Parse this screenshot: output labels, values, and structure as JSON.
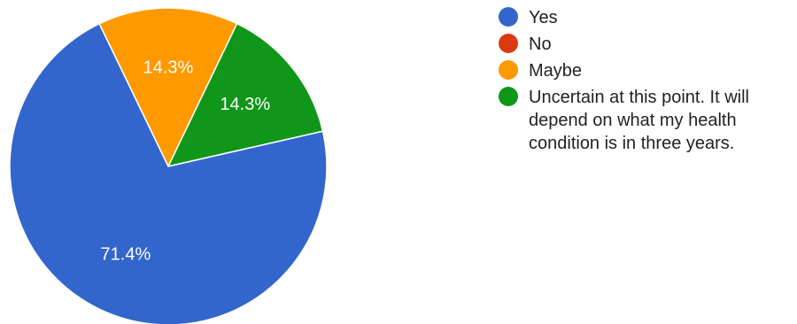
{
  "chart_data": {
    "type": "pie",
    "title": "",
    "categories": [
      "Yes",
      "No",
      "Maybe",
      "Uncertain at this point. It will depend on what my health condition is in three years."
    ],
    "values": [
      71.4,
      0,
      14.3,
      14.3
    ],
    "slice_labels": [
      "71.4%",
      "",
      "14.3%",
      "14.3%"
    ],
    "colors": [
      "#3366cc",
      "#dc3912",
      "#ff9900",
      "#109618"
    ],
    "legend": "right",
    "start_angle": "top, clockwise from the Maybe slice"
  },
  "legend": {
    "items": [
      {
        "label": "Yes",
        "color": "#3366cc"
      },
      {
        "label": "No",
        "color": "#dc3912"
      },
      {
        "label": "Maybe",
        "color": "#ff9900"
      },
      {
        "label": "Uncertain at this point. It will depend on what my health condition is in three years.",
        "color": "#109618"
      }
    ]
  }
}
